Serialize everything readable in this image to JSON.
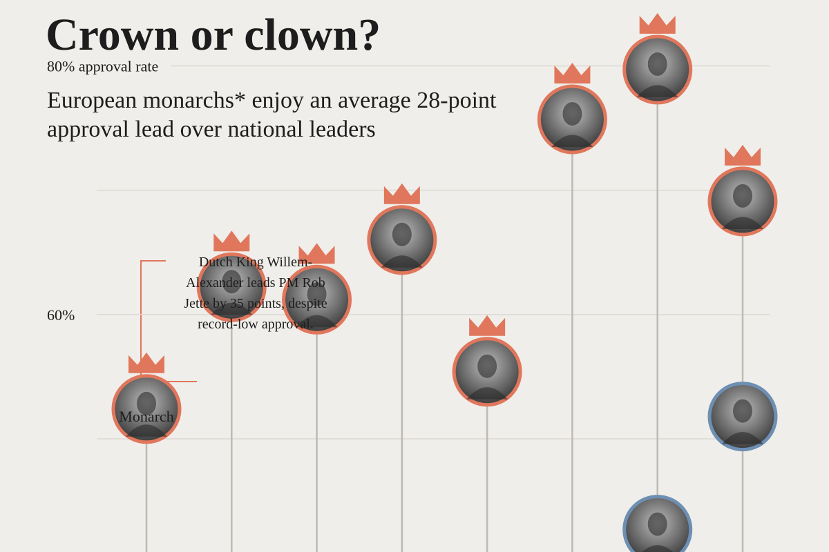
{
  "chart_data": {
    "type": "lollipop",
    "title": "Crown or clown?",
    "subtitle": [
      "European monarchs* enjoy an average 28-point",
      "approval lead over national leaders"
    ],
    "categories": [
      null,
      null,
      null,
      null,
      null,
      null,
      null,
      null
    ],
    "series": [
      {
        "name": "Monarch",
        "color": "#e0775c",
        "values": [
          52.4,
          62.2,
          61.2,
          66.0,
          55.4,
          75.7,
          79.7,
          69.1
        ]
      },
      {
        "color": "#6d8fb3",
        "values": [
          null,
          null,
          null,
          null,
          null,
          null,
          42.7,
          51.8
        ]
      }
    ],
    "annotation": [
      "Dutch King Willem-",
      "Alexander leads PM Rob",
      "Jette by 35 points, despite",
      "record-low approval."
    ],
    "ylim": [
      40.9,
      85.3
    ],
    "yticks": [
      {
        "value": 80,
        "label": "80% approval rate"
      },
      {
        "value": 70,
        "label": null
      },
      {
        "value": 60,
        "label": "60%"
      },
      {
        "value": 50,
        "label": null
      }
    ],
    "grid": true
  }
}
